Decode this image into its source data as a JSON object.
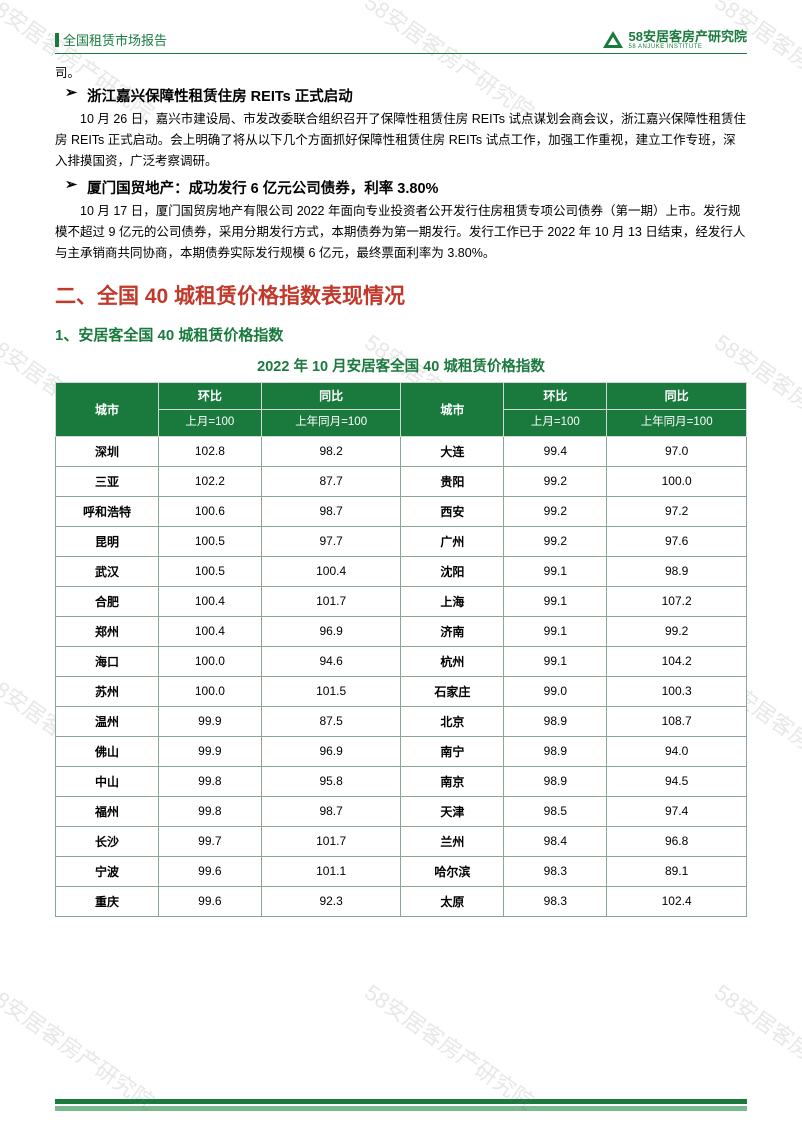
{
  "header": {
    "title": "全国租赁市场报告",
    "brand_main": "58安居客房产研究院",
    "brand_sub": "58 ANJUKE INSTITUTE"
  },
  "orphan_line": "司。",
  "bullets": [
    {
      "title": "浙江嘉兴保障性租赁住房 REITs 正式启动",
      "body": "10 月 26 日，嘉兴市建设局、市发改委联合组织召开了保障性租赁住房 REITs 试点谋划会商会议，浙江嘉兴保障性租赁住房 REITs 正式启动。会上明确了将从以下几个方面抓好保障性租赁住房 REITs 试点工作，加强工作重视，建立工作专班，深入排摸国资，广泛考察调研。"
    },
    {
      "title": "厦门国贸地产：成功发行 6 亿元公司债券，利率 3.80%",
      "body": "10 月 17 日，厦门国贸房地产有限公司 2022 年面向专业投资者公开发行住房租赁专项公司债券（第一期）上市。发行规模不超过 9 亿元的公司债券，采用分期发行方式，本期债券为第一期发行。发行工作已于 2022 年 10 月 13 日结束，经发行人与主承销商共同协商，本期债券实际发行规模 6 亿元，最终票面利率为 3.80%。"
    }
  ],
  "section_h1": "二、全国 40 城租赁价格指数表现情况",
  "section_h2": "1、安居客全国 40 城租赁价格指数",
  "table": {
    "title": "2022 年 10 月安居客全国 40 城租赁价格指数",
    "head": {
      "city": "城市",
      "mom_top": "环比",
      "mom_sub": "上月=100",
      "yoy_top": "同比",
      "yoy_sub": "上年同月=100"
    },
    "rows": [
      {
        "c1": "深圳",
        "m1": "102.8",
        "y1": "98.2",
        "c2": "大连",
        "m2": "99.4",
        "y2": "97.0"
      },
      {
        "c1": "三亚",
        "m1": "102.2",
        "y1": "87.7",
        "c2": "贵阳",
        "m2": "99.2",
        "y2": "100.0"
      },
      {
        "c1": "呼和浩特",
        "m1": "100.6",
        "y1": "98.7",
        "c2": "西安",
        "m2": "99.2",
        "y2": "97.2"
      },
      {
        "c1": "昆明",
        "m1": "100.5",
        "y1": "97.7",
        "c2": "广州",
        "m2": "99.2",
        "y2": "97.6"
      },
      {
        "c1": "武汉",
        "m1": "100.5",
        "y1": "100.4",
        "c2": "沈阳",
        "m2": "99.1",
        "y2": "98.9"
      },
      {
        "c1": "合肥",
        "m1": "100.4",
        "y1": "101.7",
        "c2": "上海",
        "m2": "99.1",
        "y2": "107.2"
      },
      {
        "c1": "郑州",
        "m1": "100.4",
        "y1": "96.9",
        "c2": "济南",
        "m2": "99.1",
        "y2": "99.2"
      },
      {
        "c1": "海口",
        "m1": "100.0",
        "y1": "94.6",
        "c2": "杭州",
        "m2": "99.1",
        "y2": "104.2"
      },
      {
        "c1": "苏州",
        "m1": "100.0",
        "y1": "101.5",
        "c2": "石家庄",
        "m2": "99.0",
        "y2": "100.3"
      },
      {
        "c1": "温州",
        "m1": "99.9",
        "y1": "87.5",
        "c2": "北京",
        "m2": "98.9",
        "y2": "108.7"
      },
      {
        "c1": "佛山",
        "m1": "99.9",
        "y1": "96.9",
        "c2": "南宁",
        "m2": "98.9",
        "y2": "94.0"
      },
      {
        "c1": "中山",
        "m1": "99.8",
        "y1": "95.8",
        "c2": "南京",
        "m2": "98.9",
        "y2": "94.5"
      },
      {
        "c1": "福州",
        "m1": "99.8",
        "y1": "98.7",
        "c2": "天津",
        "m2": "98.5",
        "y2": "97.4"
      },
      {
        "c1": "长沙",
        "m1": "99.7",
        "y1": "101.7",
        "c2": "兰州",
        "m2": "98.4",
        "y2": "96.8"
      },
      {
        "c1": "宁波",
        "m1": "99.6",
        "y1": "101.1",
        "c2": "哈尔滨",
        "m2": "98.3",
        "y2": "89.1"
      },
      {
        "c1": "重庆",
        "m1": "99.6",
        "y1": "92.3",
        "c2": "太原",
        "m2": "98.3",
        "y2": "102.4"
      }
    ]
  },
  "watermark_text": "58安居客房产研究院",
  "colors": {
    "green": "#1a7a3e",
    "green_light": "#7ab98e",
    "red": "#c0392b",
    "border": "#8aa591",
    "text": "#000000",
    "bg": "#ffffff"
  },
  "col_widths_pct": [
    14,
    14,
    19,
    14,
    14,
    19
  ]
}
